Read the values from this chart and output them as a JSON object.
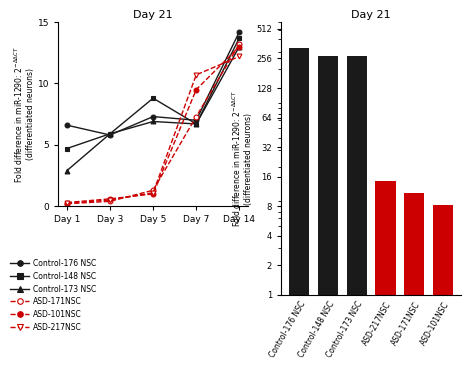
{
  "title": "Day 21",
  "line_chart": {
    "x_labels": [
      "Day 1",
      "Day 3",
      "Day 5",
      "Day 7",
      "Day 14"
    ],
    "ylim": [
      0,
      15
    ],
    "yticks": [
      0,
      5,
      10,
      15
    ],
    "series": [
      {
        "label": "Control-176 NSC",
        "values": [
          6.6,
          5.8,
          7.3,
          7.0,
          14.2
        ],
        "color": "#1a1a1a",
        "linestyle": "-",
        "marker": "o",
        "mfc": "#1a1a1a"
      },
      {
        "label": "Control-148 NSC",
        "values": [
          4.7,
          5.9,
          8.8,
          6.7,
          13.7
        ],
        "color": "#1a1a1a",
        "linestyle": "-",
        "marker": "s",
        "mfc": "#1a1a1a"
      },
      {
        "label": "Control-173 NSC",
        "values": [
          2.9,
          5.9,
          6.9,
          6.7,
          13.0
        ],
        "color": "#1a1a1a",
        "linestyle": "-",
        "marker": "^",
        "mfc": "#1a1a1a"
      },
      {
        "label": "ASD-171NSC",
        "values": [
          0.2,
          0.4,
          1.3,
          7.3,
          13.2
        ],
        "color": "#cc0000",
        "linestyle": "--",
        "marker": "o",
        "mfc": "white"
      },
      {
        "label": "ASD-101NSC",
        "values": [
          0.3,
          0.6,
          1.0,
          9.5,
          13.0
        ],
        "color": "#cc0000",
        "linestyle": "--",
        "marker": "o",
        "mfc": "#cc0000"
      },
      {
        "label": "ASD-217NSC",
        "values": [
          0.25,
          0.5,
          1.1,
          10.7,
          12.2
        ],
        "color": "#cc0000",
        "linestyle": "--",
        "marker": "v",
        "mfc": "white"
      }
    ]
  },
  "bar_chart": {
    "title": "Day 21",
    "categories": [
      "Control-176 NSC",
      "Control-148 NSC",
      "Control-173 NSC",
      "ASD-217NSC",
      "ASD-171NSC",
      "ASD-101NSC"
    ],
    "values": [
      330,
      270,
      270,
      14.5,
      11.0,
      8.2
    ],
    "colors": [
      "#1a1a1a",
      "#1a1a1a",
      "#1a1a1a",
      "#cc0000",
      "#cc0000",
      "#cc0000"
    ],
    "yticks": [
      1,
      2,
      4,
      8,
      16,
      32,
      64,
      128,
      256,
      512
    ],
    "ylim": [
      1,
      600
    ]
  }
}
